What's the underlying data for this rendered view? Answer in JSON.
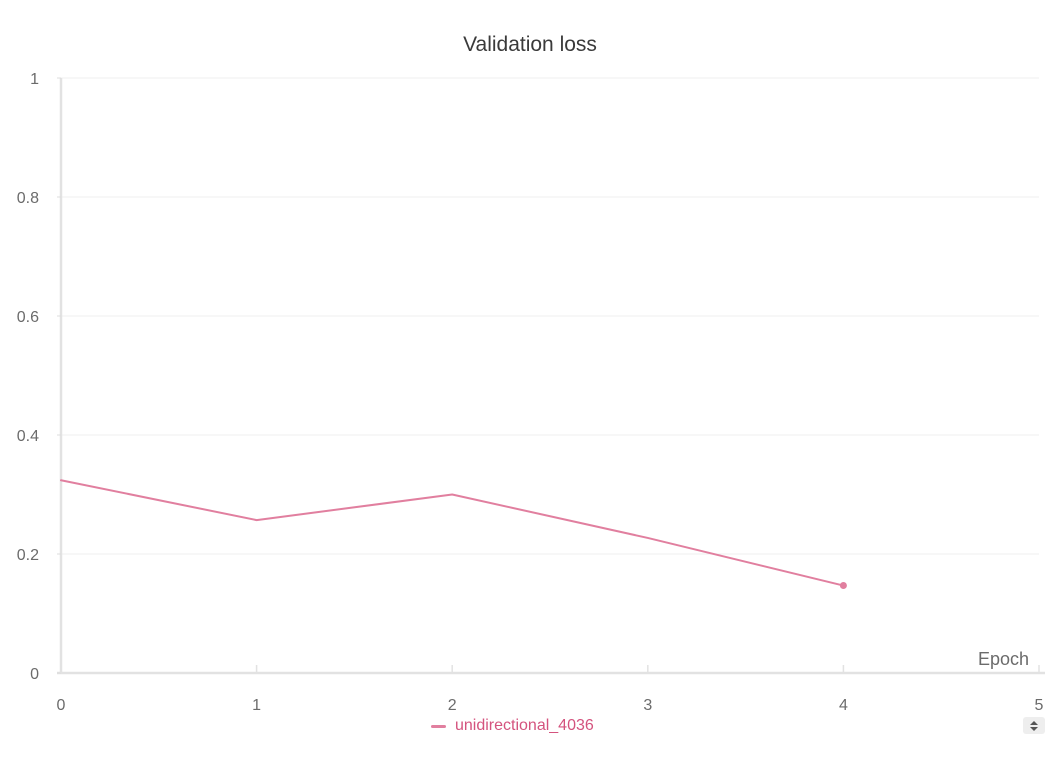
{
  "chart_data": {
    "type": "line",
    "title": "Validation loss",
    "xlabel": "Epoch",
    "ylabel": "",
    "xlim": [
      0,
      5
    ],
    "ylim": [
      0,
      1
    ],
    "x_ticks": [
      "0",
      "1",
      "2",
      "3",
      "4",
      "5"
    ],
    "y_ticks": [
      "0",
      "0.2",
      "0.4",
      "0.6",
      "0.8",
      "1"
    ],
    "grid": true,
    "legend_position": "bottom-center",
    "series": [
      {
        "name": "unidirectional_4036",
        "color": "#e17f9f",
        "x": [
          0,
          1,
          2,
          3,
          4
        ],
        "y": [
          0.324,
          0.257,
          0.3,
          0.227,
          0.147
        ]
      }
    ]
  },
  "legend": {
    "label": "unidirectional_4036",
    "text_color": "#d4537e",
    "scroll_icon": "up-down-arrows-icon"
  }
}
